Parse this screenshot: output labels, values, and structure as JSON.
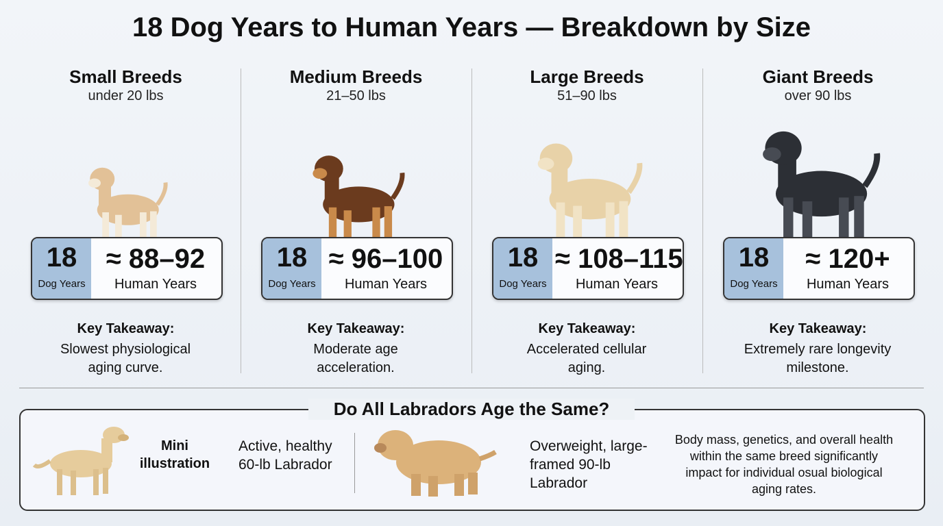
{
  "title": "18 Dog Years to Human Years — Breakdown by Size",
  "columns": [
    {
      "name": "Small Breeds",
      "weight": "under 20 lbs",
      "dog_age": "18",
      "dog_label": "Dog Years",
      "human_age": "≈ 88–92",
      "human_label": "Human Years",
      "takeaway_label": "Key Takeaway:",
      "takeaway": "Slowest physiological aging curve."
    },
    {
      "name": "Medium Breeds",
      "weight": "21–50 lbs",
      "dog_age": "18",
      "dog_label": "Dog Years",
      "human_age": "≈ 96–100",
      "human_label": "Human Years",
      "takeaway_label": "Key Takeaway:",
      "takeaway": "Moderate age acceleration."
    },
    {
      "name": "Large Breeds",
      "weight": "51–90 lbs",
      "dog_age": "18",
      "dog_label": "Dog Years",
      "human_age": "≈ 108–115",
      "human_label": "Human Years",
      "takeaway_label": "Key Takeaway:",
      "takeaway": "Accelerated cellular aging."
    },
    {
      "name": "Giant Breeds",
      "weight": "over 90 lbs",
      "dog_age": "18",
      "dog_label": "Dog Years",
      "human_age": "≈ 120+",
      "human_label": "Human Years",
      "takeaway_label": "Key Takeaway:",
      "takeaway": "Extremely rare longevity milestone."
    }
  ],
  "bottom": {
    "title": "Do All Labradors Age the Same?",
    "mini_label": "Mini illustration",
    "lab1": "Active, healthy 60-lb Labrador",
    "lab2": "Overweight, large-framed 90-lb Labrador",
    "note": "Body mass, genetics, and overall health within  the same breed significantly impact for individual osual biological aging rates."
  }
}
